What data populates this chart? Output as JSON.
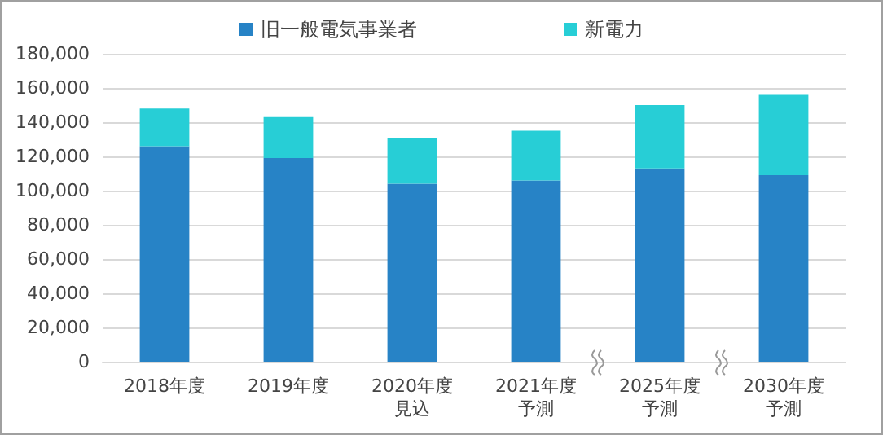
{
  "chart_data": {
    "type": "bar",
    "stacked": true,
    "categories": [
      "2018年度",
      "2019年度",
      "2020年度見込",
      "2021年度予測",
      "2025年度予測",
      "2030年度予測"
    ],
    "series": [
      {
        "name": "旧一般電気事業者",
        "color": "#2783c6",
        "values": [
          126000,
          119000,
          104000,
          106000,
          113000,
          109000
        ]
      },
      {
        "name": "新電力",
        "color": "#27ced6",
        "values": [
          22000,
          24000,
          27000,
          29000,
          37000,
          47000
        ]
      }
    ],
    "ylim": [
      0,
      180000
    ],
    "yticks": [
      {
        "value": 0,
        "label": "0"
      },
      {
        "value": 20000,
        "label": "20,000"
      },
      {
        "value": 40000,
        "label": "40,000"
      },
      {
        "value": 60000,
        "label": "60,000"
      },
      {
        "value": 80000,
        "label": "80,000"
      },
      {
        "value": 100000,
        "label": "100,000"
      },
      {
        "value": 120000,
        "label": "120,000"
      },
      {
        "value": 140000,
        "label": "140,000"
      },
      {
        "value": 160000,
        "label": "160,000"
      },
      {
        "value": 180000,
        "label": "180,000"
      }
    ],
    "grid": "y",
    "legend": "top"
  }
}
